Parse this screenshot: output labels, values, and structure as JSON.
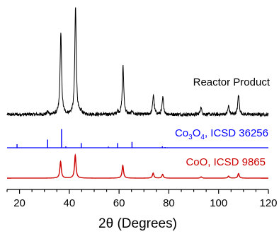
{
  "chart_data": {
    "type": "line",
    "title": "",
    "xlabel": {
      "greek": "θ",
      "prefix": "2",
      "suffix": " (Degrees)"
    },
    "ylabel": "",
    "xlim": [
      15,
      120
    ],
    "x_ticks": [
      20,
      40,
      60,
      80,
      100,
      120
    ],
    "grid": false,
    "legend": "none",
    "series": [
      {
        "name": "Reactor Product",
        "color": "#000000",
        "kind": "measured-pattern",
        "baseline": 0.0,
        "noise": 0.6,
        "peak_width": 0.35,
        "peaks": [
          {
            "x": 31.3,
            "y": 1.0
          },
          {
            "x": 36.6,
            "y": 29.0
          },
          {
            "x": 42.5,
            "y": 38.0
          },
          {
            "x": 44.8,
            "y": 1.0
          },
          {
            "x": 59.4,
            "y": 1.2
          },
          {
            "x": 61.6,
            "y": 17.0
          },
          {
            "x": 65.3,
            "y": 1.2
          },
          {
            "x": 73.8,
            "y": 7.0
          },
          {
            "x": 77.6,
            "y": 6.0
          },
          {
            "x": 92.9,
            "y": 2.5
          },
          {
            "x": 104.0,
            "y": 3.0
          },
          {
            "x": 108.0,
            "y": 7.0
          }
        ]
      },
      {
        "name": "Co3O4, ICSD 36256",
        "label_parts": [
          "Co",
          "3",
          "O",
          "4",
          ", ICSD 36256"
        ],
        "color": "#0000ff",
        "kind": "reference-sticks",
        "peaks": [
          {
            "x": 19.0,
            "y": 1.5
          },
          {
            "x": 31.3,
            "y": 3.5
          },
          {
            "x": 36.9,
            "y": 8.0
          },
          {
            "x": 38.6,
            "y": 0.6
          },
          {
            "x": 44.8,
            "y": 2.0
          },
          {
            "x": 55.7,
            "y": 0.5
          },
          {
            "x": 59.4,
            "y": 2.0
          },
          {
            "x": 65.2,
            "y": 2.5
          },
          {
            "x": 77.4,
            "y": 0.6
          },
          {
            "x": 78.5,
            "y": 0.3
          }
        ]
      },
      {
        "name": "CoO, ICSD 9865",
        "color": "#cc0000",
        "kind": "reference-profile",
        "peak_width": 0.35,
        "peaks": [
          {
            "x": 36.5,
            "y": 6.5
          },
          {
            "x": 42.4,
            "y": 9.0
          },
          {
            "x": 61.5,
            "y": 5.0
          },
          {
            "x": 73.7,
            "y": 2.0
          },
          {
            "x": 77.5,
            "y": 1.5
          },
          {
            "x": 93.0,
            "y": 0.5
          },
          {
            "x": 104.0,
            "y": 0.8
          },
          {
            "x": 108.0,
            "y": 1.8
          }
        ]
      }
    ]
  }
}
